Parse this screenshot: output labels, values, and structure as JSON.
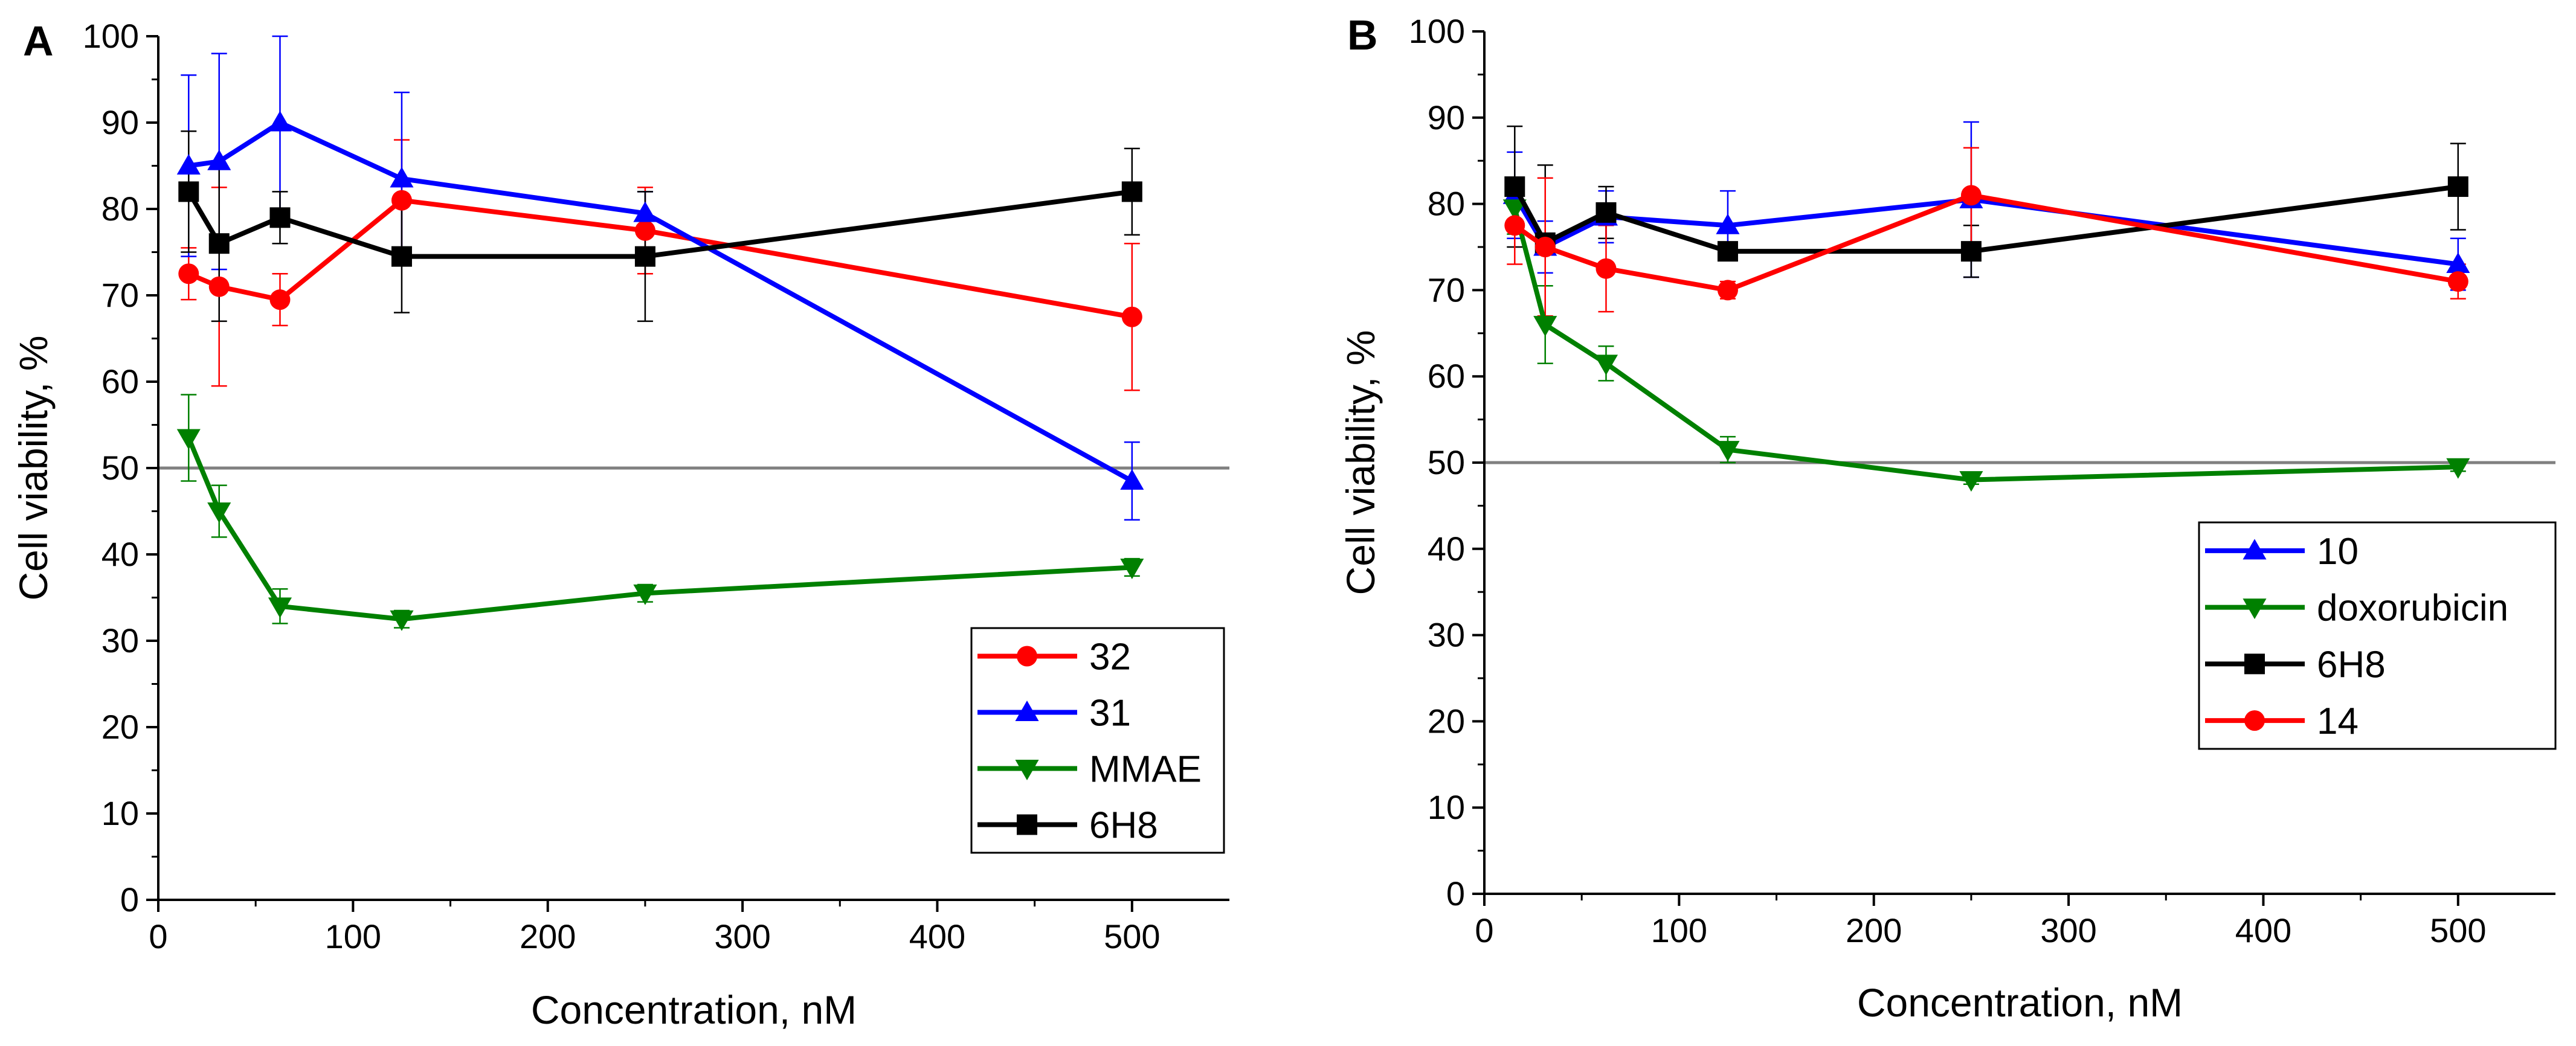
{
  "chart_data": [
    {
      "type": "line",
      "panel_label": "A",
      "xlabel": "Concentration, nM",
      "ylabel": "Cell viability, %",
      "xlim": [
        0,
        550
      ],
      "ylim": [
        0,
        100
      ],
      "xticks": [
        0,
        100,
        200,
        300,
        400,
        500
      ],
      "yticks": [
        0,
        10,
        20,
        30,
        40,
        50,
        60,
        70,
        80,
        90,
        100
      ],
      "reference_line": 50,
      "reference_color": "#808080",
      "legend_position": "bottom-right",
      "series": [
        {
          "name": "32",
          "color": "#ff0000",
          "marker": "circle",
          "x": [
            15.6,
            31.25,
            62.5,
            125,
            250,
            500
          ],
          "y": [
            72.5,
            71,
            69.5,
            81,
            77.5,
            67.5
          ],
          "err": [
            3,
            11.5,
            3,
            7,
            5,
            8.5
          ]
        },
        {
          "name": "31",
          "color": "#0000ff",
          "marker": "triangle-up",
          "x": [
            15.6,
            31.25,
            62.5,
            125,
            250,
            500
          ],
          "y": [
            85,
            85.5,
            90,
            83.5,
            79.5,
            48.5
          ],
          "err": [
            10.5,
            12.5,
            10,
            10,
            2.5,
            4.5
          ]
        },
        {
          "name": "MMAE",
          "color": "#008000",
          "marker": "triangle-down",
          "x": [
            15.6,
            31.25,
            62.5,
            125,
            250,
            500
          ],
          "y": [
            53.5,
            45,
            34,
            32.5,
            35.5,
            38.5
          ],
          "err": [
            5,
            3,
            2,
            1,
            1,
            1
          ]
        },
        {
          "name": "6H8",
          "color": "#000000",
          "marker": "square",
          "x": [
            15.6,
            31.25,
            62.5,
            125,
            250,
            500
          ],
          "y": [
            82,
            76,
            79,
            74.5,
            74.5,
            82
          ],
          "err": [
            7,
            9,
            3,
            6.5,
            7.5,
            5
          ]
        }
      ]
    },
    {
      "type": "line",
      "panel_label": "B",
      "xlabel": "Concentration, nM",
      "ylabel": "Cell viability, %",
      "xlim": [
        0,
        550
      ],
      "ylim": [
        0,
        100
      ],
      "xticks": [
        0,
        100,
        200,
        300,
        400,
        500
      ],
      "yticks": [
        0,
        10,
        20,
        30,
        40,
        50,
        60,
        70,
        80,
        90,
        100
      ],
      "reference_line": 50,
      "reference_color": "#808080",
      "legend_position": "bottom-right",
      "series": [
        {
          "name": "10",
          "color": "#0000ff",
          "marker": "triangle-up",
          "x": [
            15.6,
            31.25,
            62.5,
            125,
            250,
            500
          ],
          "y": [
            81,
            75,
            78.5,
            77.5,
            80.5,
            73
          ],
          "err": [
            5,
            3,
            3,
            4,
            9,
            3
          ]
        },
        {
          "name": "doxorubicin",
          "color": "#008000",
          "marker": "triangle-down",
          "x": [
            15.6,
            31.25,
            62.5,
            125,
            250,
            500
          ],
          "y": [
            79.5,
            66,
            61.5,
            51.5,
            48,
            49.5
          ],
          "err": [
            3,
            4.5,
            2,
            1.5,
            0.5,
            0.5
          ]
        },
        {
          "name": "6H8",
          "color": "#000000",
          "marker": "square",
          "x": [
            15.6,
            31.25,
            62.5,
            125,
            250,
            500
          ],
          "y": [
            82,
            75.5,
            79,
            74.5,
            74.5,
            82
          ],
          "err": [
            7,
            9,
            3,
            1,
            3,
            5
          ]
        },
        {
          "name": "14",
          "color": "#ff0000",
          "marker": "circle",
          "x": [
            15.6,
            31.25,
            62.5,
            125,
            250,
            500
          ],
          "y": [
            77.5,
            75,
            72.5,
            70,
            81,
            71
          ],
          "err": [
            4.5,
            8,
            5,
            1,
            5.5,
            2
          ]
        }
      ]
    }
  ]
}
